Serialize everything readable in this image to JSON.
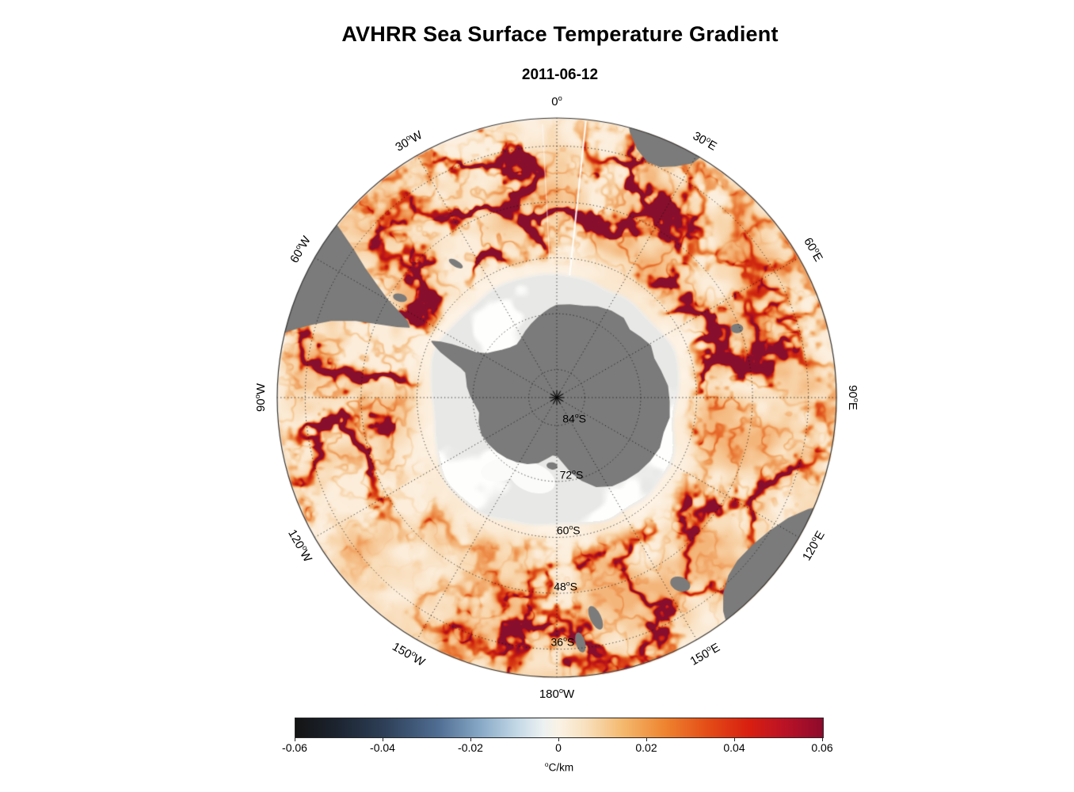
{
  "title": "AVHRR Sea Surface Temperature Gradient",
  "subtitle": "2011-06-12",
  "chart_data": {
    "type": "heatmap",
    "map_projection": "south polar stereographic",
    "region": "Southern Ocean around Antarctica",
    "variable": "sea surface temperature gradient magnitude",
    "units": "°C/km",
    "units_sup": "o",
    "units_rest": "C/km",
    "center_marker": "*",
    "grid": {
      "meridian_step_deg": 30,
      "parallel_step_deg": 12,
      "style": "dotted"
    },
    "colorbar": {
      "orientation": "horizontal",
      "min": -0.06,
      "max": 0.06,
      "ticks": [
        -0.06,
        -0.04,
        -0.02,
        0,
        0.02,
        0.04,
        0.06
      ],
      "tick_labels": [
        "-0.06",
        "-0.04",
        "-0.02",
        "0",
        "0.02",
        "0.04",
        "0.06"
      ],
      "stops": [
        {
          "pos": 0.0,
          "color": "#141414"
        },
        {
          "pos": 0.08,
          "color": "#1c2430"
        },
        {
          "pos": 0.17,
          "color": "#2e4058"
        },
        {
          "pos": 0.27,
          "color": "#4f6d92"
        },
        {
          "pos": 0.35,
          "color": "#87a8c6"
        },
        {
          "pos": 0.42,
          "color": "#c3d8e6"
        },
        {
          "pos": 0.47,
          "color": "#ecf1f1"
        },
        {
          "pos": 0.5,
          "color": "#faf2e5"
        },
        {
          "pos": 0.55,
          "color": "#f8e0be"
        },
        {
          "pos": 0.62,
          "color": "#f4b96e"
        },
        {
          "pos": 0.7,
          "color": "#ee8430"
        },
        {
          "pos": 0.78,
          "color": "#e44d17"
        },
        {
          "pos": 0.86,
          "color": "#d81f10"
        },
        {
          "pos": 0.93,
          "color": "#b91226"
        },
        {
          "pos": 1.0,
          "color": "#8d0a2c"
        }
      ]
    },
    "latitude_rings": [
      {
        "value": "84",
        "hemi": "S",
        "radius_frac": 0.1
      },
      {
        "value": "72",
        "hemi": "S",
        "radius_frac": 0.3
      },
      {
        "value": "60",
        "hemi": "S",
        "radius_frac": 0.5
      },
      {
        "value": "48",
        "hemi": "S",
        "radius_frac": 0.7
      },
      {
        "value": "36",
        "hemi": "S",
        "radius_frac": 0.9
      }
    ],
    "meridian_labels": [
      {
        "deg": 0,
        "value": "0",
        "hemi": ""
      },
      {
        "deg": 30,
        "value": "30",
        "hemi": "E"
      },
      {
        "deg": 60,
        "value": "60",
        "hemi": "E"
      },
      {
        "deg": 90,
        "value": "90",
        "hemi": "E"
      },
      {
        "deg": 120,
        "value": "120",
        "hemi": "E"
      },
      {
        "deg": 150,
        "value": "150",
        "hemi": "E"
      },
      {
        "deg": 180,
        "value": "180",
        "hemi": "W"
      },
      {
        "deg": -150,
        "value": "150",
        "hemi": "W"
      },
      {
        "deg": -120,
        "value": "120",
        "hemi": "W"
      },
      {
        "deg": -90,
        "value": "90",
        "hemi": "W"
      },
      {
        "deg": -60,
        "value": "60",
        "hemi": "W"
      },
      {
        "deg": -30,
        "value": "30",
        "hemi": "W"
      }
    ],
    "colors": {
      "land": "#7b7b7b",
      "sea_ice": "#e9e9e8",
      "ice_white_patch": "#fbfbfa",
      "ocean_base": "#fdf4e8",
      "graticule": "#1a1a1a",
      "background": "#ffffff"
    },
    "field_stops": [
      {
        "t": 0.0,
        "color": "#fdf4e8"
      },
      {
        "t": 0.1,
        "color": "#fbe9d2"
      },
      {
        "t": 0.22,
        "color": "#f8d6ad"
      },
      {
        "t": 0.35,
        "color": "#f4b87e"
      },
      {
        "t": 0.48,
        "color": "#ef9754"
      },
      {
        "t": 0.6,
        "color": "#e8702f"
      },
      {
        "t": 0.72,
        "color": "#dc4517"
      },
      {
        "t": 0.82,
        "color": "#cd2310"
      },
      {
        "t": 0.9,
        "color": "#b5121c"
      },
      {
        "t": 1.0,
        "color": "#870e2d"
      }
    ]
  }
}
